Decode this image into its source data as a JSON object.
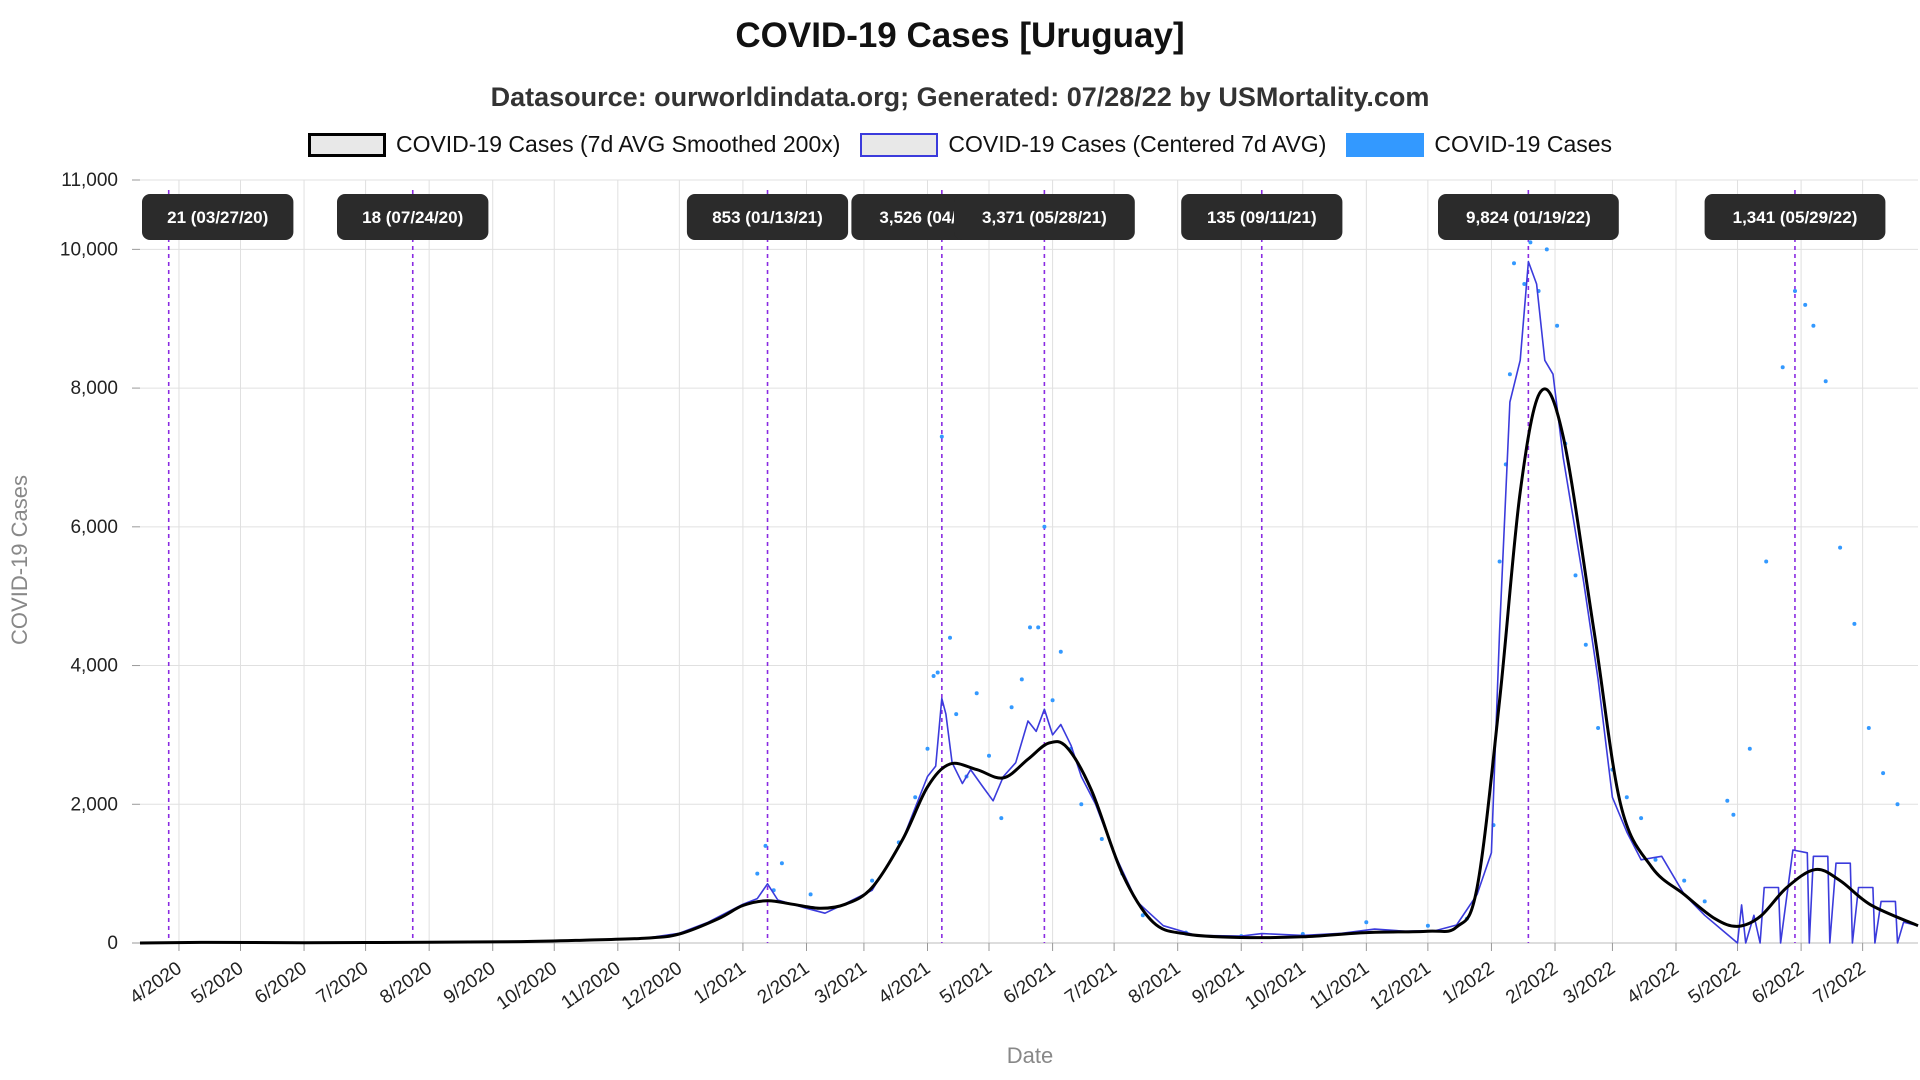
{
  "legend": [
    {
      "label": "COVID-19 Cases (7d AVG Smoothed 200x)",
      "swatch": "smooth"
    },
    {
      "label": "COVID-19 Cases (Centered 7d AVG)",
      "swatch": "avg"
    },
    {
      "label": "COVID-19 Cases",
      "swatch": "daily"
    }
  ],
  "colors": {
    "smooth": "#000000",
    "avg": "#3b3bdc",
    "daily": "#3399ff",
    "marker": "#8a2be2",
    "annotation_bg": "#2b2b2b",
    "grid": "#e0e0e0"
  },
  "chart_data": {
    "type": "line",
    "title": "COVID-19 Cases [Uruguay]",
    "subtitle": "Datasource: ourworldindata.org; Generated: 07/28/22 by USMortality.com",
    "xlabel": "Date",
    "ylabel": "COVID-19 Cases",
    "xlim": [
      "2020-03-13",
      "2022-07-28"
    ],
    "ylim": [
      0,
      11000
    ],
    "y_ticks": [
      0,
      2000,
      4000,
      6000,
      8000,
      10000,
      11000
    ],
    "y_tick_labels": [
      "0",
      "2,000",
      "4,000",
      "6,000",
      "8,000",
      "10,000",
      "11,000"
    ],
    "x_ticks": [
      {
        "date": "2020-04-01",
        "label": "4/2020"
      },
      {
        "date": "2020-05-01",
        "label": "5/2020"
      },
      {
        "date": "2020-06-01",
        "label": "6/2020"
      },
      {
        "date": "2020-07-01",
        "label": "7/2020"
      },
      {
        "date": "2020-08-01",
        "label": "8/2020"
      },
      {
        "date": "2020-09-01",
        "label": "9/2020"
      },
      {
        "date": "2020-10-01",
        "label": "10/2020"
      },
      {
        "date": "2020-11-01",
        "label": "11/2020"
      },
      {
        "date": "2020-12-01",
        "label": "12/2020"
      },
      {
        "date": "2021-01-01",
        "label": "1/2021"
      },
      {
        "date": "2021-02-01",
        "label": "2/2021"
      },
      {
        "date": "2021-03-01",
        "label": "3/2021"
      },
      {
        "date": "2021-04-01",
        "label": "4/2021"
      },
      {
        "date": "2021-05-01",
        "label": "5/2021"
      },
      {
        "date": "2021-06-01",
        "label": "6/2021"
      },
      {
        "date": "2021-07-01",
        "label": "7/2021"
      },
      {
        "date": "2021-08-01",
        "label": "8/2021"
      },
      {
        "date": "2021-09-01",
        "label": "9/2021"
      },
      {
        "date": "2021-10-01",
        "label": "10/2021"
      },
      {
        "date": "2021-11-01",
        "label": "11/2021"
      },
      {
        "date": "2021-12-01",
        "label": "12/2021"
      },
      {
        "date": "2022-01-01",
        "label": "1/2022"
      },
      {
        "date": "2022-02-01",
        "label": "2/2022"
      },
      {
        "date": "2022-03-01",
        "label": "3/2022"
      },
      {
        "date": "2022-04-01",
        "label": "4/2022"
      },
      {
        "date": "2022-05-01",
        "label": "5/2022"
      },
      {
        "date": "2022-06-01",
        "label": "6/2022"
      },
      {
        "date": "2022-07-01",
        "label": "7/2022"
      }
    ],
    "grid": true,
    "legend_position": "top-center",
    "annotations": [
      {
        "date": "2020-03-27",
        "label": "21 (03/27/20)"
      },
      {
        "date": "2020-07-24",
        "label": "18 (07/24/20)"
      },
      {
        "date": "2021-01-13",
        "label": "853 (01/13/21)"
      },
      {
        "date": "2021-04-08",
        "label": "3,526 (04/08/21)"
      },
      {
        "date": "2021-05-28",
        "label": "3,371 (05/28/21)"
      },
      {
        "date": "2021-09-11",
        "label": "135 (09/11/21)"
      },
      {
        "date": "2022-01-19",
        "label": "9,824 (01/19/22)"
      },
      {
        "date": "2022-05-29",
        "label": "1,341 (05/29/22)"
      }
    ],
    "series": [
      {
        "name": "COVID-19 Cases (7d AVG Smoothed 200x)",
        "style": "smooth",
        "points": [
          [
            "2020-03-13",
            0
          ],
          [
            "2020-04-15",
            8
          ],
          [
            "2020-06-01",
            5
          ],
          [
            "2020-08-01",
            10
          ],
          [
            "2020-09-15",
            20
          ],
          [
            "2020-10-15",
            40
          ],
          [
            "2020-11-15",
            70
          ],
          [
            "2020-12-01",
            130
          ],
          [
            "2020-12-20",
            350
          ],
          [
            "2021-01-01",
            540
          ],
          [
            "2021-01-13",
            610
          ],
          [
            "2021-01-25",
            560
          ],
          [
            "2021-02-08",
            500
          ],
          [
            "2021-02-20",
            560
          ],
          [
            "2021-03-05",
            800
          ],
          [
            "2021-03-20",
            1500
          ],
          [
            "2021-04-01",
            2250
          ],
          [
            "2021-04-12",
            2580
          ],
          [
            "2021-04-25",
            2500
          ],
          [
            "2021-05-08",
            2380
          ],
          [
            "2021-05-20",
            2650
          ],
          [
            "2021-05-30",
            2880
          ],
          [
            "2021-06-08",
            2820
          ],
          [
            "2021-06-20",
            2200
          ],
          [
            "2021-07-05",
            1000
          ],
          [
            "2021-07-20",
            300
          ],
          [
            "2021-08-05",
            130
          ],
          [
            "2021-09-01",
            80
          ],
          [
            "2021-10-01",
            90
          ],
          [
            "2021-11-01",
            150
          ],
          [
            "2021-12-01",
            170
          ],
          [
            "2021-12-15",
            230
          ],
          [
            "2021-12-25",
            800
          ],
          [
            "2022-01-05",
            3500
          ],
          [
            "2022-01-15",
            6500
          ],
          [
            "2022-01-25",
            7950
          ],
          [
            "2022-02-05",
            7300
          ],
          [
            "2022-02-20",
            4500
          ],
          [
            "2022-03-05",
            2000
          ],
          [
            "2022-03-20",
            1100
          ],
          [
            "2022-04-05",
            700
          ],
          [
            "2022-04-20",
            350
          ],
          [
            "2022-05-01",
            240
          ],
          [
            "2022-05-12",
            380
          ],
          [
            "2022-05-25",
            800
          ],
          [
            "2022-06-08",
            1060
          ],
          [
            "2022-06-20",
            900
          ],
          [
            "2022-07-05",
            550
          ],
          [
            "2022-07-28",
            250
          ]
        ]
      },
      {
        "name": "COVID-19 Cases (Centered 7d AVG)",
        "style": "avg",
        "points": [
          [
            "2020-03-13",
            0
          ],
          [
            "2020-04-15",
            10
          ],
          [
            "2020-06-01",
            5
          ],
          [
            "2020-08-01",
            10
          ],
          [
            "2020-09-15",
            20
          ],
          [
            "2020-10-15",
            45
          ],
          [
            "2020-11-15",
            70
          ],
          [
            "2020-12-01",
            140
          ],
          [
            "2020-12-15",
            300
          ],
          [
            "2021-01-01",
            560
          ],
          [
            "2021-01-08",
            640
          ],
          [
            "2021-01-13",
            853
          ],
          [
            "2021-01-18",
            620
          ],
          [
            "2021-02-01",
            500
          ],
          [
            "2021-02-10",
            430
          ],
          [
            "2021-02-20",
            570
          ],
          [
            "2021-03-05",
            760
          ],
          [
            "2021-03-20",
            1500
          ],
          [
            "2021-04-01",
            2400
          ],
          [
            "2021-04-05",
            2550
          ],
          [
            "2021-04-08",
            3526
          ],
          [
            "2021-04-10",
            3300
          ],
          [
            "2021-04-13",
            2600
          ],
          [
            "2021-04-18",
            2300
          ],
          [
            "2021-04-22",
            2500
          ],
          [
            "2021-04-28",
            2250
          ],
          [
            "2021-05-03",
            2050
          ],
          [
            "2021-05-08",
            2400
          ],
          [
            "2021-05-14",
            2600
          ],
          [
            "2021-05-20",
            3200
          ],
          [
            "2021-05-24",
            3050
          ],
          [
            "2021-05-28",
            3371
          ],
          [
            "2021-06-01",
            3000
          ],
          [
            "2021-06-05",
            3150
          ],
          [
            "2021-06-10",
            2850
          ],
          [
            "2021-06-15",
            2400
          ],
          [
            "2021-06-22",
            2000
          ],
          [
            "2021-07-01",
            1300
          ],
          [
            "2021-07-12",
            600
          ],
          [
            "2021-07-25",
            250
          ],
          [
            "2021-08-10",
            110
          ],
          [
            "2021-09-01",
            100
          ],
          [
            "2021-09-11",
            135
          ],
          [
            "2021-10-01",
            110
          ],
          [
            "2021-10-20",
            140
          ],
          [
            "2021-11-05",
            200
          ],
          [
            "2021-11-20",
            170
          ],
          [
            "2021-12-05",
            180
          ],
          [
            "2021-12-15",
            260
          ],
          [
            "2021-12-25",
            700
          ],
          [
            "2022-01-01",
            1300
          ],
          [
            "2022-01-05",
            4500
          ],
          [
            "2022-01-10",
            7800
          ],
          [
            "2022-01-15",
            8400
          ],
          [
            "2022-01-19",
            9824
          ],
          [
            "2022-01-23",
            9500
          ],
          [
            "2022-01-27",
            8400
          ],
          [
            "2022-01-31",
            8200
          ],
          [
            "2022-02-05",
            7000
          ],
          [
            "2022-02-10",
            6100
          ],
          [
            "2022-02-15",
            5200
          ],
          [
            "2022-02-22",
            3800
          ],
          [
            "2022-03-01",
            2100
          ],
          [
            "2022-03-08",
            1600
          ],
          [
            "2022-03-15",
            1200
          ],
          [
            "2022-03-25",
            1250
          ],
          [
            "2022-04-05",
            700
          ],
          [
            "2022-04-15",
            400
          ],
          [
            "2022-04-25",
            150
          ],
          [
            "2022-05-01",
            0
          ],
          [
            "2022-05-03",
            550
          ],
          [
            "2022-05-05",
            0
          ],
          [
            "2022-05-09",
            400
          ],
          [
            "2022-05-12",
            0
          ],
          [
            "2022-05-14",
            800
          ],
          [
            "2022-05-21",
            800
          ],
          [
            "2022-05-22",
            0
          ],
          [
            "2022-05-28",
            1341
          ],
          [
            "2022-06-04",
            1300
          ],
          [
            "2022-06-05",
            0
          ],
          [
            "2022-06-07",
            1250
          ],
          [
            "2022-06-14",
            1250
          ],
          [
            "2022-06-15",
            0
          ],
          [
            "2022-06-18",
            1150
          ],
          [
            "2022-06-25",
            1150
          ],
          [
            "2022-06-26",
            0
          ],
          [
            "2022-06-29",
            800
          ],
          [
            "2022-07-06",
            800
          ],
          [
            "2022-07-07",
            0
          ],
          [
            "2022-07-10",
            600
          ],
          [
            "2022-07-17",
            600
          ],
          [
            "2022-07-18",
            0
          ],
          [
            "2022-07-21",
            300
          ],
          [
            "2022-07-28",
            250
          ]
        ]
      },
      {
        "name": "COVID-19 Cases",
        "style": "daily",
        "points": [
          [
            "2021-01-08",
            1000
          ],
          [
            "2021-01-12",
            1400
          ],
          [
            "2021-01-16",
            760
          ],
          [
            "2021-01-20",
            1150
          ],
          [
            "2021-02-03",
            700
          ],
          [
            "2021-03-05",
            900
          ],
          [
            "2021-03-18",
            1450
          ],
          [
            "2021-03-26",
            2100
          ],
          [
            "2021-04-01",
            2800
          ],
          [
            "2021-04-04",
            3850
          ],
          [
            "2021-04-06",
            3900
          ],
          [
            "2021-04-08",
            7300
          ],
          [
            "2021-04-12",
            4400
          ],
          [
            "2021-04-15",
            3300
          ],
          [
            "2021-04-20",
            2400
          ],
          [
            "2021-04-25",
            3600
          ],
          [
            "2021-05-01",
            2700
          ],
          [
            "2021-05-07",
            1800
          ],
          [
            "2021-05-12",
            3400
          ],
          [
            "2021-05-17",
            3800
          ],
          [
            "2021-05-21",
            4550
          ],
          [
            "2021-05-25",
            4550
          ],
          [
            "2021-05-28",
            6000
          ],
          [
            "2021-06-01",
            3500
          ],
          [
            "2021-06-05",
            4200
          ],
          [
            "2021-06-10",
            2800
          ],
          [
            "2021-06-15",
            2000
          ],
          [
            "2021-06-25",
            1500
          ],
          [
            "2021-07-05",
            1000
          ],
          [
            "2021-07-15",
            400
          ],
          [
            "2021-08-05",
            150
          ],
          [
            "2021-09-01",
            100
          ],
          [
            "2021-10-01",
            130
          ],
          [
            "2021-11-01",
            300
          ],
          [
            "2021-12-01",
            250
          ],
          [
            "2021-12-20",
            350
          ],
          [
            "2022-01-02",
            1700
          ],
          [
            "2022-01-05",
            5500
          ],
          [
            "2022-01-08",
            6900
          ],
          [
            "2022-01-10",
            8200
          ],
          [
            "2022-01-12",
            9800
          ],
          [
            "2022-01-17",
            9500
          ],
          [
            "2022-01-20",
            10100
          ],
          [
            "2022-01-24",
            9400
          ],
          [
            "2022-01-28",
            10000
          ],
          [
            "2022-02-02",
            8900
          ],
          [
            "2022-02-06",
            7200
          ],
          [
            "2022-02-11",
            5300
          ],
          [
            "2022-02-16",
            4300
          ],
          [
            "2022-02-22",
            3100
          ],
          [
            "2022-03-01",
            2500
          ],
          [
            "2022-03-08",
            2100
          ],
          [
            "2022-03-15",
            1800
          ],
          [
            "2022-03-22",
            1200
          ],
          [
            "2022-04-05",
            900
          ],
          [
            "2022-04-15",
            600
          ],
          [
            "2022-04-26",
            2050
          ],
          [
            "2022-04-29",
            1850
          ],
          [
            "2022-05-07",
            2800
          ],
          [
            "2022-05-15",
            5500
          ],
          [
            "2022-05-23",
            8300
          ],
          [
            "2022-05-29",
            9400
          ],
          [
            "2022-06-03",
            9200
          ],
          [
            "2022-06-07",
            8900
          ],
          [
            "2022-06-13",
            8100
          ],
          [
            "2022-06-20",
            5700
          ],
          [
            "2022-06-27",
            4600
          ],
          [
            "2022-07-04",
            3100
          ],
          [
            "2022-07-11",
            2450
          ],
          [
            "2022-07-18",
            2000
          ]
        ]
      }
    ]
  }
}
